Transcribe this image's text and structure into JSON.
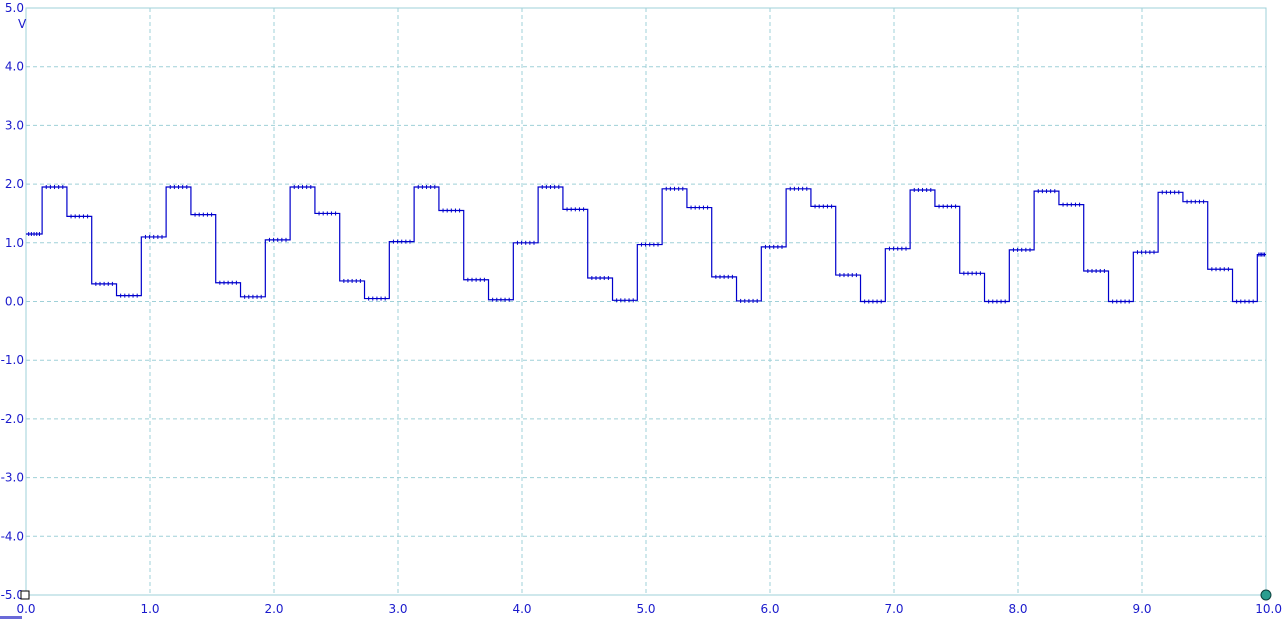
{
  "chart_data": {
    "type": "line",
    "title": "",
    "xlabel": "",
    "ylabel": "V",
    "xlim": [
      0,
      10
    ],
    "ylim": [
      -5,
      5
    ],
    "x_ticks": [
      "0.0",
      "1.0",
      "2.0",
      "3.0",
      "4.0",
      "5.0",
      "6.0",
      "7.0",
      "8.0",
      "9.0",
      "10.0"
    ],
    "y_ticks": [
      "5.0",
      "4.0",
      "3.0",
      "2.0",
      "1.0",
      "0.0",
      "-1.0",
      "-2.0",
      "-3.0",
      "-4.0",
      "-5.0"
    ],
    "grid": true,
    "series": [
      {
        "color": "#0000cc",
        "steps": [
          {
            "x": 0.0,
            "y": 1.15
          },
          {
            "x": 0.13,
            "y": 1.95
          },
          {
            "x": 0.33,
            "y": 1.45
          },
          {
            "x": 0.53,
            "y": 0.3
          },
          {
            "x": 0.73,
            "y": 0.1
          },
          {
            "x": 0.93,
            "y": 1.1
          },
          {
            "x": 1.13,
            "y": 1.95
          },
          {
            "x": 1.33,
            "y": 1.48
          },
          {
            "x": 1.53,
            "y": 0.32
          },
          {
            "x": 1.73,
            "y": 0.08
          },
          {
            "x": 1.93,
            "y": 1.05
          },
          {
            "x": 2.13,
            "y": 1.95
          },
          {
            "x": 2.33,
            "y": 1.5
          },
          {
            "x": 2.53,
            "y": 0.35
          },
          {
            "x": 2.73,
            "y": 0.05
          },
          {
            "x": 2.93,
            "y": 1.02
          },
          {
            "x": 3.13,
            "y": 1.95
          },
          {
            "x": 3.33,
            "y": 1.55
          },
          {
            "x": 3.53,
            "y": 0.37
          },
          {
            "x": 3.73,
            "y": 0.03
          },
          {
            "x": 3.93,
            "y": 1.0
          },
          {
            "x": 4.13,
            "y": 1.95
          },
          {
            "x": 4.33,
            "y": 1.57
          },
          {
            "x": 4.53,
            "y": 0.4
          },
          {
            "x": 4.73,
            "y": 0.02
          },
          {
            "x": 4.93,
            "y": 0.97
          },
          {
            "x": 5.13,
            "y": 1.92
          },
          {
            "x": 5.33,
            "y": 1.6
          },
          {
            "x": 5.53,
            "y": 0.42
          },
          {
            "x": 5.73,
            "y": 0.01
          },
          {
            "x": 5.93,
            "y": 0.93
          },
          {
            "x": 6.13,
            "y": 1.92
          },
          {
            "x": 6.33,
            "y": 1.62
          },
          {
            "x": 6.53,
            "y": 0.45
          },
          {
            "x": 6.73,
            "y": 0.0
          },
          {
            "x": 6.93,
            "y": 0.9
          },
          {
            "x": 7.13,
            "y": 1.9
          },
          {
            "x": 7.33,
            "y": 1.62
          },
          {
            "x": 7.53,
            "y": 0.48
          },
          {
            "x": 7.73,
            "y": 0.0
          },
          {
            "x": 7.93,
            "y": 0.88
          },
          {
            "x": 8.13,
            "y": 1.88
          },
          {
            "x": 8.33,
            "y": 1.65
          },
          {
            "x": 8.53,
            "y": 0.52
          },
          {
            "x": 8.73,
            "y": 0.0
          },
          {
            "x": 8.93,
            "y": 0.84
          },
          {
            "x": 9.13,
            "y": 1.86
          },
          {
            "x": 9.33,
            "y": 1.7
          },
          {
            "x": 9.53,
            "y": 0.55
          },
          {
            "x": 9.73,
            "y": 0.0
          },
          {
            "x": 9.93,
            "y": 0.8
          }
        ],
        "x_end": 10.0
      }
    ]
  }
}
